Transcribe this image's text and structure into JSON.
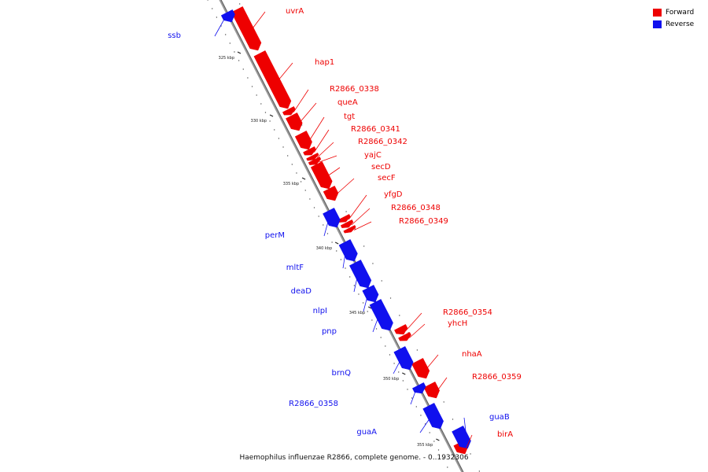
{
  "colors": {
    "forward": "#ee0000",
    "reverse": "#1010ee",
    "backbone": "#999999"
  },
  "legend": {
    "forward_label": "Forward",
    "reverse_label": "Reverse"
  },
  "caption": "Haemophilus influenzae R2866, complete genome. - 0..1932306",
  "ticks": [
    {
      "label": "325 kbp"
    },
    {
      "label": "330 kbp"
    },
    {
      "label": "335 kbp"
    },
    {
      "label": "340 kbp"
    },
    {
      "label": "345 kbp"
    },
    {
      "label": "350 kbp"
    },
    {
      "label": "355 kbp"
    }
  ],
  "forward_genes": [
    {
      "name": "uvrA"
    },
    {
      "name": "hap1"
    },
    {
      "name": "R2866_0338"
    },
    {
      "name": "queA"
    },
    {
      "name": "tgt"
    },
    {
      "name": "R2866_0341"
    },
    {
      "name": "R2866_0342"
    },
    {
      "name": "yajC"
    },
    {
      "name": "secD"
    },
    {
      "name": "secF"
    },
    {
      "name": "yfgD"
    },
    {
      "name": "R2866_0348"
    },
    {
      "name": "R2866_0349"
    },
    {
      "name": "R2866_0354"
    },
    {
      "name": "yhcH"
    },
    {
      "name": "nhaA"
    },
    {
      "name": "R2866_0359"
    },
    {
      "name": "birA"
    }
  ],
  "reverse_genes": [
    {
      "name": "ssb"
    },
    {
      "name": "perM"
    },
    {
      "name": "mltF"
    },
    {
      "name": "deaD"
    },
    {
      "name": "nlpI"
    },
    {
      "name": "pnp"
    },
    {
      "name": "brnQ"
    },
    {
      "name": "R2866_0358"
    },
    {
      "name": "guaA"
    },
    {
      "name": "guaB"
    }
  ]
}
